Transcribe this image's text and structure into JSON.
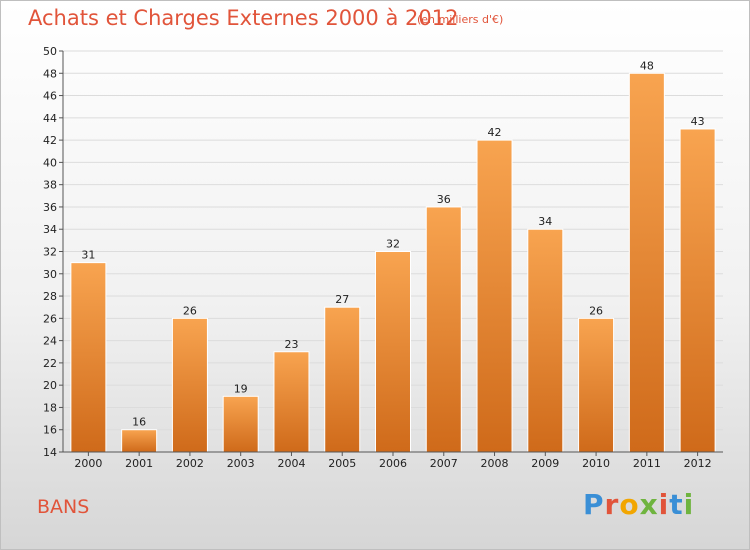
{
  "header": {
    "title": "Achats et Charges Externes 2000 à 2012",
    "subtitle": "(en milliers d'€)"
  },
  "footer": {
    "town": "BANS",
    "logo_text": "Proxiti",
    "logo_colors": [
      "#3a8fd6",
      "#e1543a",
      "#f2a600",
      "#6fb43f",
      "#e1543a",
      "#3a8fd6",
      "#6fb43f"
    ]
  },
  "colors": {
    "bar_light": "#f8a450",
    "bar_dark": "#cf6a1a",
    "title": "#e1543a"
  },
  "chart_data": {
    "type": "bar",
    "title": "Achats et Charges Externes 2000 à 2012",
    "subtitle": "(en milliers d'€)",
    "xlabel": "",
    "ylabel": "",
    "categories": [
      "2000",
      "2001",
      "2002",
      "2003",
      "2004",
      "2005",
      "2006",
      "2007",
      "2008",
      "2009",
      "2010",
      "2011",
      "2012"
    ],
    "values": [
      31,
      16,
      26,
      19,
      23,
      27,
      32,
      36,
      42,
      34,
      26,
      48,
      43
    ],
    "ylim": [
      14,
      50
    ],
    "ytick_step": 2,
    "grid": true,
    "data_labels": true
  }
}
